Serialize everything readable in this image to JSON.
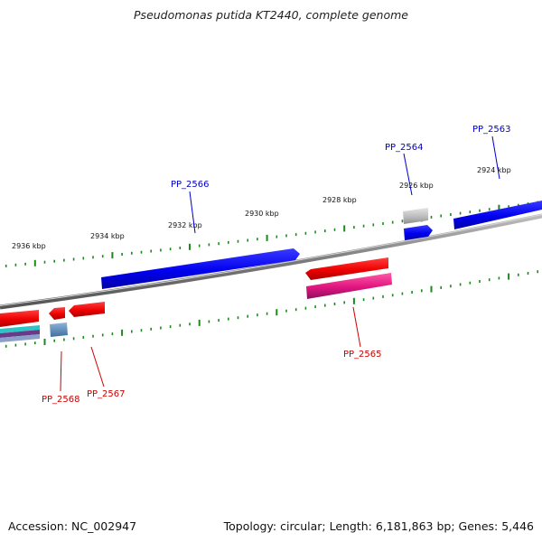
{
  "title": "Pseudomonas putida KT2440, complete genome",
  "footer": {
    "accession": "Accession: NC_002947",
    "summary": "Topology: circular; Length: 6,181,863 bp; Genes: 5,446"
  },
  "scale_labels": [
    "2924 kbp",
    "2926 kbp",
    "2928 kbp",
    "2930 kbp",
    "2932 kbp",
    "2934 kbp",
    "2936 kbp"
  ],
  "gene_labels": {
    "pp2563": "PP_2563",
    "pp2564": "PP_2564",
    "pp2565": "PP_2565",
    "pp2566": "PP_2566",
    "pp2567": "PP_2567",
    "pp2568": "PP_2568"
  },
  "colors": {
    "forward_strand_gene": "#0000ee",
    "reverse_strand_gene": "#ee0000",
    "pink_feature": "#e0147e",
    "grey_feature": "#b8b8b8",
    "tick": "#1a8a1a",
    "label_blue": "#0000cc",
    "label_red": "#cc0000"
  }
}
